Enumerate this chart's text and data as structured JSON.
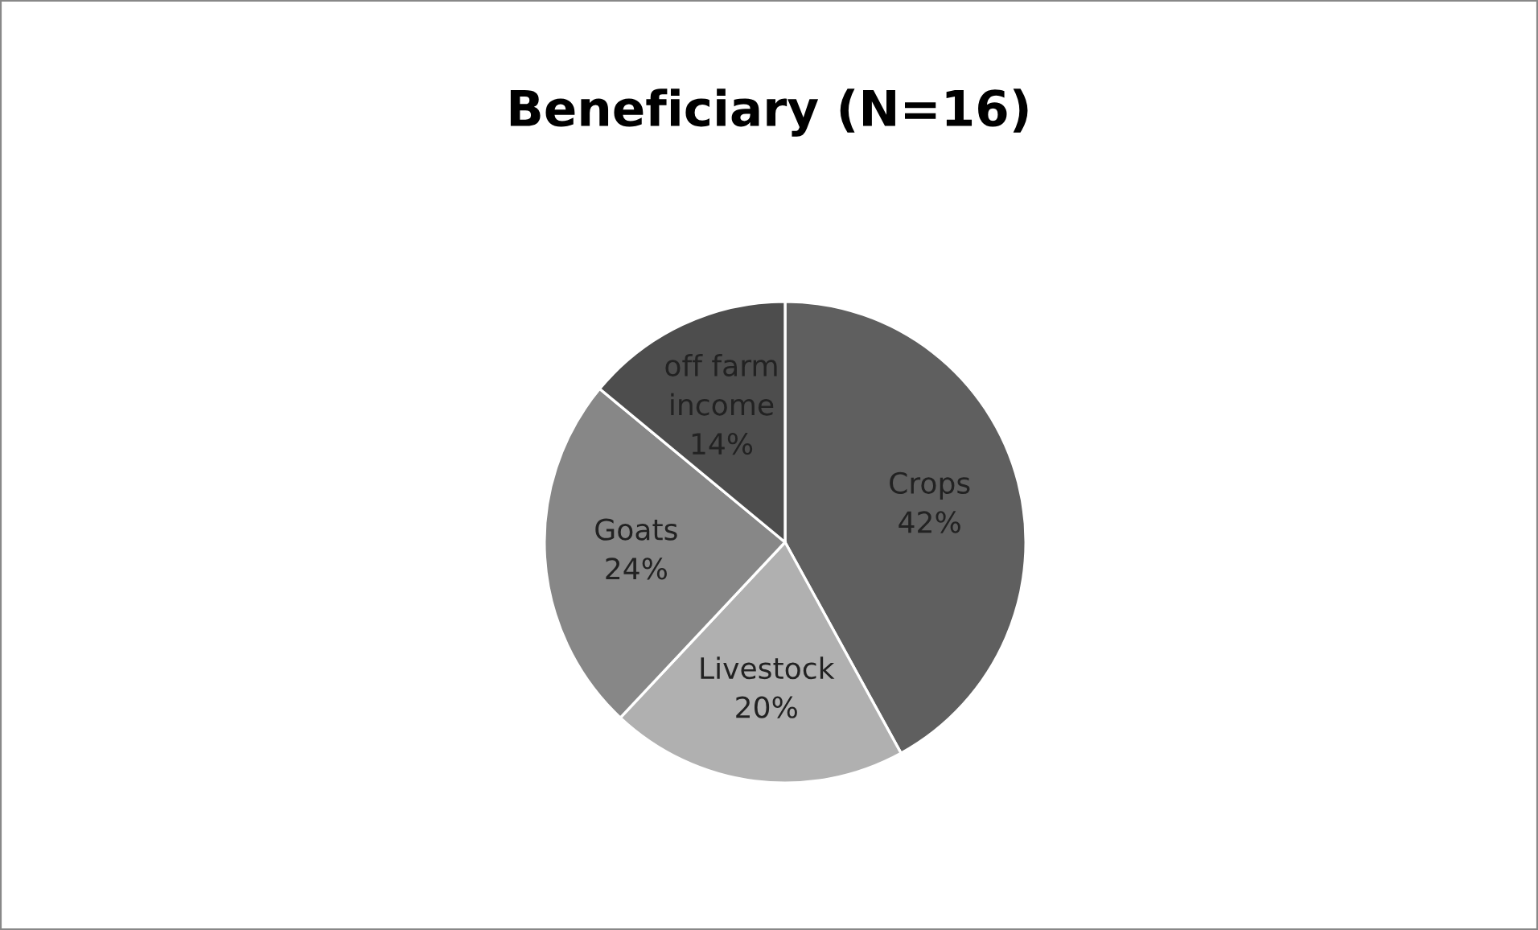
{
  "chart_data": {
    "type": "pie",
    "title": "Beneficiary (N=16)",
    "categories": [
      "Crops",
      "Livestock",
      "Goats",
      "off farm\nincome"
    ],
    "values": [
      42,
      20,
      24,
      14
    ],
    "value_labels": [
      "42%",
      "20%",
      "24%",
      "14%"
    ],
    "colors": [
      "#5f5f5f",
      "#b0b0b0",
      "#878787",
      "#4d4d4d"
    ],
    "legend": false
  }
}
